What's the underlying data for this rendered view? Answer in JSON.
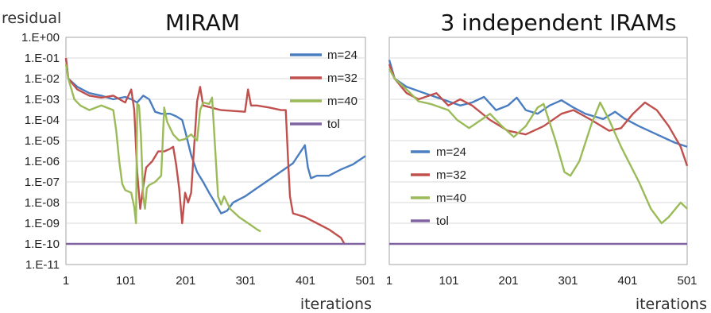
{
  "chart_data": [
    {
      "type": "line",
      "title": "MIRAM",
      "ylabel": "residual",
      "xlabel": "iterations",
      "y_scale": "log",
      "ylim": [
        1e-11,
        1
      ],
      "xlim": [
        1,
        501
      ],
      "x_ticks": [
        1,
        101,
        201,
        301,
        401,
        501
      ],
      "y_ticks": [
        "1.E+00",
        "1.E-01",
        "1.E-02",
        "1.E-03",
        "1.E-04",
        "1.E-05",
        "1.E-06",
        "1.E-07",
        "1.E-08",
        "1.E-09",
        "1.E-10",
        "1.E-11"
      ],
      "grid": "horizontal",
      "legend_position": "top-right",
      "series": [
        {
          "name": "m=24",
          "color": "#4a7ec0",
          "points": [
            [
              1,
              0.1
            ],
            [
              5,
              0.01
            ],
            [
              20,
              0.004
            ],
            [
              40,
              0.002
            ],
            [
              60,
              0.0015
            ],
            [
              80,
              0.001
            ],
            [
              100,
              0.0013
            ],
            [
              110,
              0.001
            ],
            [
              120,
              0.0007
            ],
            [
              130,
              0.0015
            ],
            [
              140,
              0.001
            ],
            [
              150,
              0.00025
            ],
            [
              160,
              0.0002
            ],
            [
              175,
              0.0002
            ],
            [
              185,
              0.00015
            ],
            [
              195,
              0.0001
            ],
            [
              200,
              3e-05
            ],
            [
              210,
              2e-06
            ],
            [
              220,
              3e-07
            ],
            [
              230,
              1e-07
            ],
            [
              240,
              3e-08
            ],
            [
              250,
              1e-08
            ],
            [
              260,
              3e-09
            ],
            [
              270,
              4e-09
            ],
            [
              280,
              1e-08
            ],
            [
              300,
              2e-08
            ],
            [
              320,
              5e-08
            ],
            [
              350,
              2e-07
            ],
            [
              380,
              8e-07
            ],
            [
              400,
              6e-06
            ],
            [
              405,
              5e-07
            ],
            [
              410,
              1.5e-07
            ],
            [
              420,
              2e-07
            ],
            [
              440,
              2e-07
            ],
            [
              460,
              4e-07
            ],
            [
              480,
              7e-07
            ],
            [
              501,
              1.8e-06
            ]
          ]
        },
        {
          "name": "m=32",
          "color": "#c0504d",
          "points": [
            [
              1,
              0.1
            ],
            [
              5,
              0.01
            ],
            [
              20,
              0.003
            ],
            [
              40,
              0.0015
            ],
            [
              60,
              0.0012
            ],
            [
              80,
              0.0015
            ],
            [
              100,
              0.0007
            ],
            [
              110,
              0.003
            ],
            [
              115,
              0.0003
            ],
            [
              120,
              3e-07
            ],
            [
              125,
              5e-09
            ],
            [
              130,
              6e-08
            ],
            [
              135,
              5e-07
            ],
            [
              145,
              1e-06
            ],
            [
              155,
              3e-06
            ],
            [
              165,
              3e-06
            ],
            [
              175,
              4e-06
            ],
            [
              180,
              5e-06
            ],
            [
              185,
              7e-07
            ],
            [
              190,
              5e-08
            ],
            [
              195,
              1e-09
            ],
            [
              200,
              3e-08
            ],
            [
              205,
              1e-08
            ],
            [
              210,
              3e-08
            ],
            [
              220,
              0.0008
            ],
            [
              225,
              0.004
            ],
            [
              230,
              0.0005
            ],
            [
              260,
              0.0003
            ],
            [
              300,
              0.00025
            ],
            [
              305,
              0.003
            ],
            [
              310,
              0.0005
            ],
            [
              320,
              0.0005
            ],
            [
              340,
              0.0004
            ],
            [
              360,
              0.0003
            ],
            [
              368,
              0.0003
            ],
            [
              372,
              1e-06
            ],
            [
              375,
              2e-08
            ],
            [
              380,
              3e-09
            ],
            [
              400,
              2e-09
            ],
            [
              420,
              1e-09
            ],
            [
              440,
              5e-10
            ],
            [
              460,
              2e-10
            ],
            [
              466,
              1e-10
            ]
          ]
        },
        {
          "name": "m=40",
          "color": "#9bbb59",
          "points": [
            [
              1,
              0.05
            ],
            [
              5,
              0.01
            ],
            [
              15,
              0.001
            ],
            [
              25,
              0.0005
            ],
            [
              40,
              0.0003
            ],
            [
              60,
              0.0005
            ],
            [
              80,
              0.0003
            ],
            [
              85,
              3e-05
            ],
            [
              90,
              1e-06
            ],
            [
              95,
              8e-08
            ],
            [
              100,
              4e-08
            ],
            [
              110,
              3e-08
            ],
            [
              115,
              6e-09
            ],
            [
              118,
              1e-09
            ],
            [
              120,
              0.0006
            ],
            [
              123,
              0.0005
            ],
            [
              126,
              2e-05
            ],
            [
              130,
              2e-08
            ],
            [
              133,
              5e-09
            ],
            [
              136,
              5e-08
            ],
            [
              140,
              7e-08
            ],
            [
              150,
              1e-07
            ],
            [
              160,
              2e-07
            ],
            [
              165,
              0.0004
            ],
            [
              170,
              8e-05
            ],
            [
              180,
              2e-05
            ],
            [
              190,
              1e-05
            ],
            [
              200,
              1.2e-05
            ],
            [
              210,
              2e-05
            ],
            [
              220,
              1e-05
            ],
            [
              225,
              0.0003
            ],
            [
              230,
              0.0007
            ],
            [
              240,
              0.0006
            ],
            [
              245,
              0.0012
            ],
            [
              250,
              5e-06
            ],
            [
              255,
              2e-08
            ],
            [
              260,
              8e-09
            ],
            [
              265,
              2e-08
            ],
            [
              275,
              5e-09
            ],
            [
              290,
              2e-09
            ],
            [
              310,
              8e-10
            ],
            [
              320,
              5e-10
            ],
            [
              326,
              4e-10
            ]
          ]
        },
        {
          "name": "tol",
          "color": "#8064a2",
          "points": [
            [
              1,
              1e-10
            ],
            [
              501,
              1e-10
            ]
          ]
        }
      ]
    },
    {
      "type": "line",
      "title": "3 independent IRAMs",
      "xlabel": "iterations",
      "y_scale": "log",
      "ylim": [
        1e-11,
        1
      ],
      "xlim": [
        1,
        501
      ],
      "x_ticks": [
        1,
        101,
        201,
        301,
        401,
        501
      ],
      "grid": "horizontal",
      "legend_position": "middle-left",
      "series": [
        {
          "name": "m=24",
          "color": "#4a7ec0",
          "points": [
            [
              1,
              0.08
            ],
            [
              10,
              0.01
            ],
            [
              30,
              0.004
            ],
            [
              60,
              0.002
            ],
            [
              90,
              0.001
            ],
            [
              120,
              0.0005
            ],
            [
              140,
              0.0007
            ],
            [
              160,
              0.0013
            ],
            [
              180,
              0.0003
            ],
            [
              200,
              0.0005
            ],
            [
              215,
              0.0012
            ],
            [
              230,
              0.0003
            ],
            [
              250,
              0.0002
            ],
            [
              270,
              0.0005
            ],
            [
              290,
              0.0009
            ],
            [
              310,
              0.0004
            ],
            [
              330,
              0.0002
            ],
            [
              360,
              0.00011
            ],
            [
              380,
              0.00025
            ],
            [
              395,
              0.00012
            ],
            [
              420,
              5e-05
            ],
            [
              450,
              2e-05
            ],
            [
              480,
              8e-06
            ],
            [
              501,
              5e-06
            ]
          ]
        },
        {
          "name": "m=32",
          "color": "#c0504d",
          "points": [
            [
              1,
              0.05
            ],
            [
              10,
              0.01
            ],
            [
              30,
              0.002
            ],
            [
              50,
              0.001
            ],
            [
              80,
              0.002
            ],
            [
              100,
              0.0005
            ],
            [
              120,
              0.001
            ],
            [
              140,
              0.0005
            ],
            [
              170,
              0.0001
            ],
            [
              200,
              3e-05
            ],
            [
              230,
              2e-05
            ],
            [
              260,
              5e-05
            ],
            [
              290,
              0.0002
            ],
            [
              310,
              0.0003
            ],
            [
              340,
              0.0001
            ],
            [
              370,
              3e-05
            ],
            [
              390,
              4e-05
            ],
            [
              410,
              0.0002
            ],
            [
              430,
              0.0007
            ],
            [
              450,
              0.0003
            ],
            [
              470,
              5e-05
            ],
            [
              490,
              5e-06
            ],
            [
              501,
              6e-07
            ]
          ]
        },
        {
          "name": "m=40",
          "color": "#9bbb59",
          "points": [
            [
              1,
              0.03
            ],
            [
              10,
              0.01
            ],
            [
              30,
              0.003
            ],
            [
              50,
              0.0008
            ],
            [
              70,
              0.0006
            ],
            [
              100,
              0.0003
            ],
            [
              115,
              0.0001
            ],
            [
              135,
              4e-05
            ],
            [
              150,
              8e-05
            ],
            [
              170,
              0.0002
            ],
            [
              190,
              5e-05
            ],
            [
              210,
              1.5e-05
            ],
            [
              230,
              5e-05
            ],
            [
              250,
              0.0004
            ],
            [
              260,
              0.0006
            ],
            [
              280,
              1e-05
            ],
            [
              295,
              3e-07
            ],
            [
              305,
              2e-07
            ],
            [
              320,
              1e-06
            ],
            [
              340,
              6e-05
            ],
            [
              355,
              0.0007
            ],
            [
              370,
              0.0001
            ],
            [
              390,
              5e-06
            ],
            [
              420,
              1e-07
            ],
            [
              440,
              5e-09
            ],
            [
              458,
              1e-09
            ],
            [
              470,
              2e-09
            ],
            [
              490,
              1e-08
            ],
            [
              501,
              5e-09
            ]
          ]
        },
        {
          "name": "tol",
          "color": "#8064a2",
          "points": [
            [
              1,
              1e-10
            ],
            [
              501,
              1e-10
            ]
          ]
        }
      ]
    }
  ]
}
